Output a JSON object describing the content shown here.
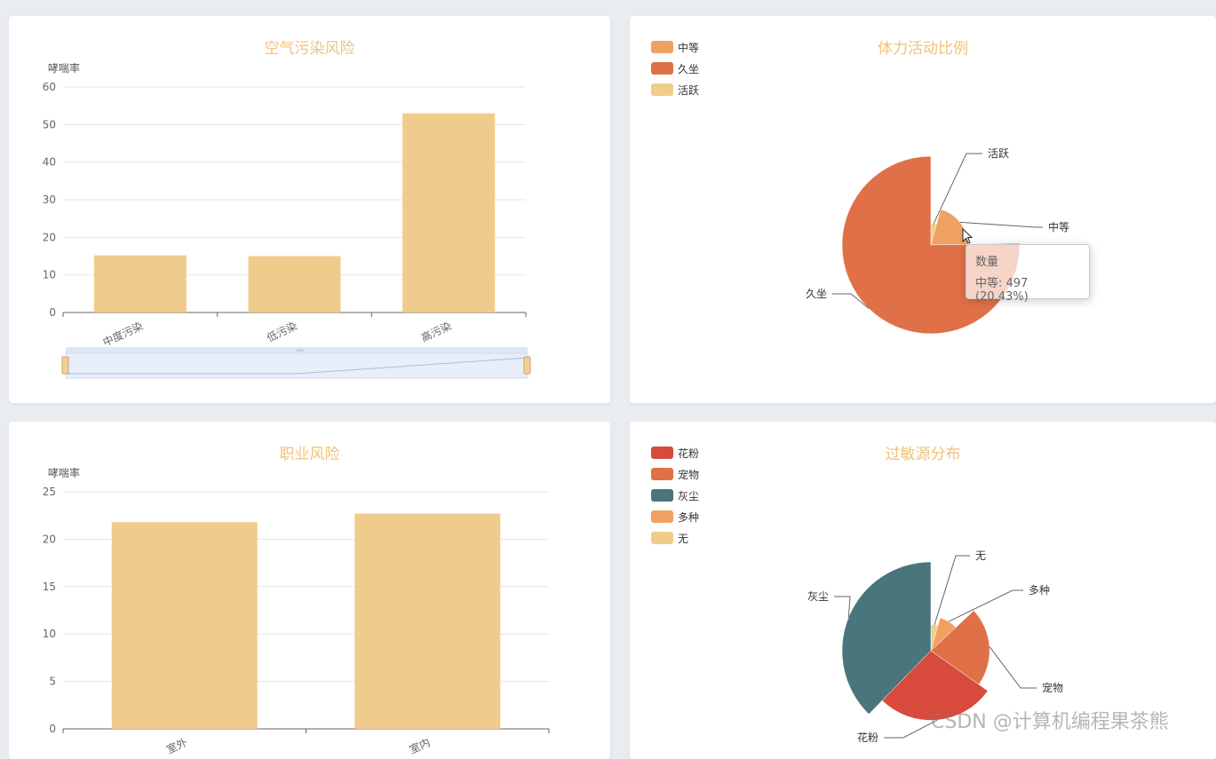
{
  "charts": {
    "air": {
      "title": "空气污染风险",
      "chart_data": {
        "type": "bar",
        "title": "空气污染风险",
        "ylabel": "哮喘率",
        "categories": [
          "中度污染",
          "低污染",
          "高污染"
        ],
        "values": [
          15.2,
          15.0,
          53.0
        ],
        "ylim": [
          0,
          60
        ],
        "yticks": [
          0,
          10,
          20,
          30,
          40,
          50,
          60
        ],
        "color": "#f0cc8c",
        "grid": true
      }
    },
    "activity": {
      "title": "体力活动比例",
      "legend": [
        {
          "label": "中等",
          "color": "#f0a062"
        },
        {
          "label": "久坐",
          "color": "#e07048"
        },
        {
          "label": "活跃",
          "color": "#f0cc8c"
        }
      ],
      "chart_data": {
        "type": "pie",
        "title": "体力活动比例",
        "rose": true,
        "slices": [
          {
            "label": "活跃",
            "value": 104,
            "color": "#f0cc8c"
          },
          {
            "label": "中等",
            "value": 497,
            "color": "#f0a062"
          },
          {
            "label": "久坐",
            "value": 1832,
            "color": "#e07048"
          }
        ]
      },
      "tooltip": {
        "series": "数量",
        "text": "中等: 497 (20.43%)"
      }
    },
    "occupation": {
      "title": "职业风险",
      "chart_data": {
        "type": "bar",
        "title": "职业风险",
        "ylabel": "哮喘率",
        "categories": [
          "室外",
          "室内"
        ],
        "values": [
          21.8,
          22.7
        ],
        "ylim": [
          0,
          25
        ],
        "yticks": [
          0,
          5,
          10,
          15,
          20,
          25
        ],
        "color": "#f0cc8c",
        "grid": true
      }
    },
    "allergen": {
      "title": "过敏源分布",
      "legend": [
        {
          "label": "花粉",
          "color": "#d84a3c"
        },
        {
          "label": "宠物",
          "color": "#e07048"
        },
        {
          "label": "灰尘",
          "color": "#4a757d"
        },
        {
          "label": "多种",
          "color": "#f0a062"
        },
        {
          "label": "无",
          "color": "#f0cc8c"
        }
      ],
      "chart_data": {
        "type": "pie",
        "title": "过敏源分布",
        "rose": true,
        "slices": [
          {
            "label": "无",
            "value": 60,
            "color": "#f0cc8c"
          },
          {
            "label": "多种",
            "value": 120,
            "color": "#f0a062"
          },
          {
            "label": "宠物",
            "value": 300,
            "color": "#e07048"
          },
          {
            "label": "花粉",
            "value": 380,
            "color": "#d84a3c"
          },
          {
            "label": "灰尘",
            "value": 520,
            "color": "#4a757d"
          }
        ]
      }
    }
  },
  "watermark": "CSDN @计算机编程果茶熊"
}
